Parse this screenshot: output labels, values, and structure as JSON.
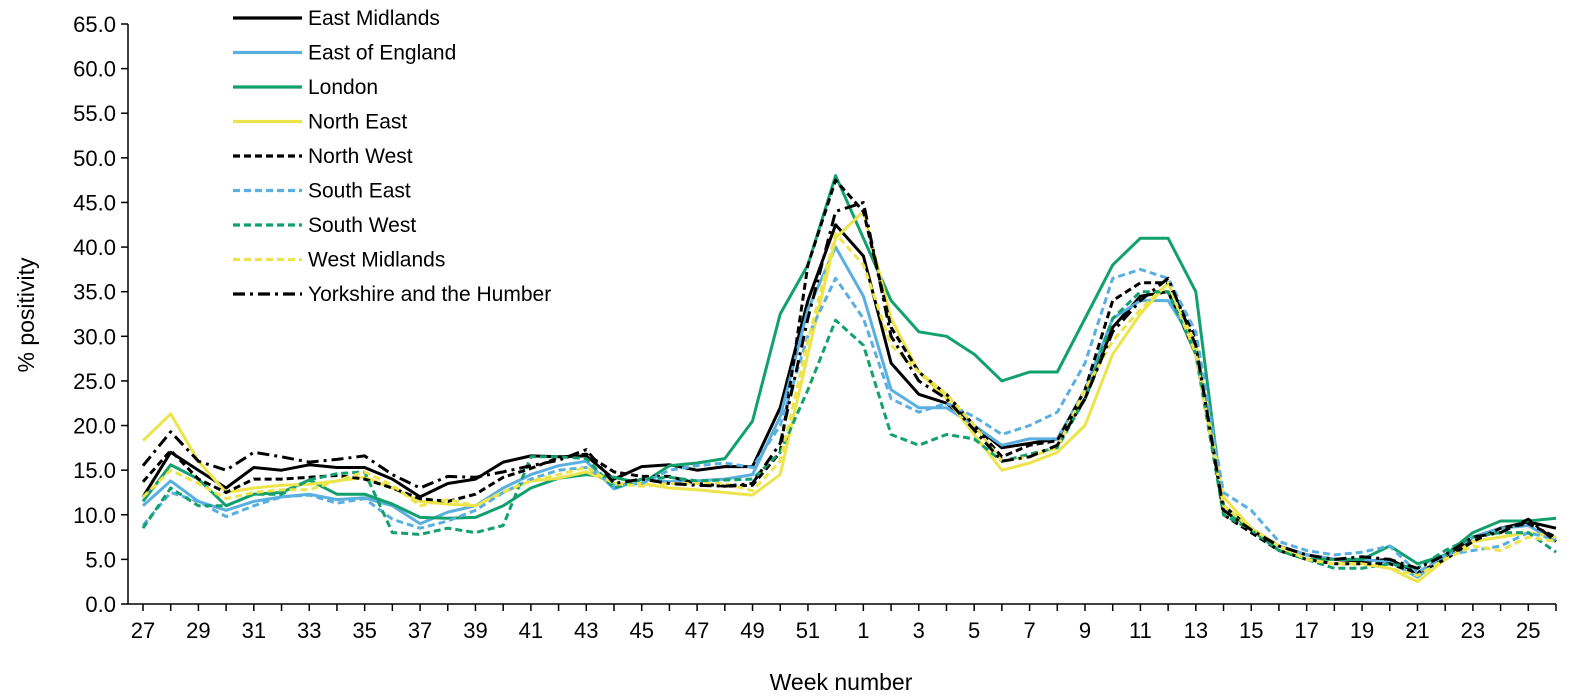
{
  "chart_data": {
    "type": "line",
    "title": "",
    "xlabel": "Week number",
    "ylabel": "% positivity",
    "ylim": [
      0,
      65
    ],
    "yticks": [
      "0.0",
      "5.0",
      "10.0",
      "15.0",
      "20.0",
      "25.0",
      "30.0",
      "35.0",
      "40.0",
      "45.0",
      "50.0",
      "55.0",
      "60.0",
      "65.0"
    ],
    "categories": [
      "27",
      "28",
      "29",
      "30",
      "31",
      "32",
      "33",
      "34",
      "35",
      "36",
      "37",
      "38",
      "39",
      "40",
      "41",
      "42",
      "43",
      "44",
      "45",
      "46",
      "47",
      "48",
      "49",
      "50",
      "51",
      "52",
      "1",
      "2",
      "3",
      "4",
      "5",
      "6",
      "7",
      "8",
      "9",
      "10",
      "11",
      "12",
      "13",
      "14",
      "15",
      "16",
      "17",
      "18",
      "19",
      "20",
      "21",
      "22",
      "23",
      "24",
      "25",
      "26"
    ],
    "xtick_labels": [
      "27",
      "29",
      "31",
      "33",
      "35",
      "37",
      "39",
      "41",
      "43",
      "45",
      "47",
      "49",
      "51",
      "1",
      "3",
      "5",
      "7",
      "9",
      "11",
      "13",
      "15",
      "17",
      "19",
      "21",
      "23",
      "25"
    ],
    "grid": false,
    "legend_position": "top-left",
    "series": [
      {
        "name": "East Midlands",
        "color": "#000000",
        "dash": "solid",
        "values": [
          12.0,
          17.0,
          15.0,
          13.0,
          15.3,
          15.0,
          15.6,
          15.3,
          15.3,
          14.0,
          12.0,
          13.5,
          14.0,
          15.9,
          16.6,
          16.5,
          16.6,
          14.0,
          15.4,
          15.6,
          15.0,
          15.4,
          15.4,
          22.0,
          34.0,
          42.5,
          39.0,
          27.0,
          23.5,
          22.5,
          20.0,
          17.5,
          18.0,
          18.5,
          23.0,
          31.0,
          34.5,
          35.0,
          28.0,
          11.0,
          8.5,
          6.5,
          5.5,
          5.0,
          4.8,
          5.0,
          3.5,
          5.0,
          7.5,
          8.5,
          9.2,
          8.5
        ]
      },
      {
        "name": "East of England",
        "color": "#5aafe1",
        "dash": "solid",
        "values": [
          11.0,
          13.8,
          11.5,
          10.5,
          11.5,
          12.0,
          12.3,
          11.7,
          11.9,
          11.0,
          9.0,
          10.3,
          11.0,
          13.0,
          14.5,
          15.5,
          16.0,
          12.9,
          14.0,
          13.7,
          13.8,
          14.0,
          14.5,
          21.0,
          33.0,
          40.0,
          34.5,
          24.0,
          22.0,
          22.0,
          20.0,
          17.8,
          18.5,
          18.5,
          24.0,
          32.0,
          34.0,
          34.0,
          29.0,
          10.5,
          8.5,
          6.5,
          5.5,
          5.0,
          5.0,
          4.7,
          3.0,
          5.5,
          7.5,
          8.5,
          8.8,
          7.0
        ]
      },
      {
        "name": "London",
        "color": "#12a06c",
        "dash": "solid",
        "values": [
          11.5,
          15.6,
          14.0,
          11.0,
          12.3,
          12.5,
          13.9,
          12.3,
          12.3,
          11.2,
          9.7,
          9.6,
          9.7,
          11.0,
          13.0,
          14.1,
          14.5,
          14.2,
          13.5,
          15.5,
          15.8,
          16.3,
          20.5,
          32.5,
          38.0,
          48.0,
          41.0,
          34.0,
          30.5,
          30.0,
          28.0,
          25.0,
          26.0,
          26.0,
          32.0,
          38.0,
          41.0,
          41.0,
          35.0,
          10.5,
          8.5,
          6.0,
          5.0,
          5.0,
          5.0,
          6.5,
          4.5,
          5.5,
          8.0,
          9.3,
          9.3,
          9.6
        ]
      },
      {
        "name": "North East",
        "color": "#ede44c",
        "dash": "solid",
        "values": [
          18.3,
          21.3,
          16.0,
          12.5,
          13.0,
          13.3,
          13.4,
          13.8,
          14.2,
          13.0,
          11.5,
          11.2,
          11.0,
          12.5,
          13.8,
          14.1,
          14.8,
          13.5,
          13.5,
          13.0,
          12.8,
          12.5,
          12.2,
          14.5,
          28.0,
          41.0,
          44.0,
          32.0,
          26.0,
          23.0,
          19.0,
          15.0,
          15.8,
          17.0,
          20.0,
          28.0,
          32.5,
          36.0,
          29.0,
          12.0,
          8.5,
          6.5,
          5.0,
          4.5,
          4.5,
          4.0,
          2.5,
          5.0,
          7.0,
          7.5,
          8.0,
          7.5
        ]
      },
      {
        "name": "North West",
        "color": "#000000",
        "dash": "dash",
        "values": [
          13.7,
          17.2,
          14.0,
          12.5,
          14.0,
          14.0,
          14.2,
          14.4,
          14.0,
          13.0,
          11.8,
          11.5,
          12.3,
          14.2,
          15.2,
          16.4,
          16.8,
          14.8,
          14.3,
          14.3,
          13.5,
          13.2,
          13.3,
          17.0,
          38.0,
          47.5,
          44.0,
          31.0,
          26.0,
          23.5,
          20.0,
          16.5,
          17.8,
          18.3,
          24.0,
          34.0,
          36.0,
          36.0,
          30.0,
          10.0,
          8.0,
          6.0,
          5.0,
          4.5,
          4.5,
          4.5,
          3.5,
          5.0,
          7.0,
          8.5,
          9.0,
          7.5
        ]
      },
      {
        "name": "South East",
        "color": "#5aafe1",
        "dash": "dash",
        "values": [
          8.8,
          12.5,
          11.5,
          9.8,
          11.0,
          12.0,
          12.2,
          11.3,
          11.8,
          9.5,
          8.5,
          9.3,
          10.5,
          12.5,
          14.0,
          15.0,
          15.3,
          13.3,
          13.5,
          15.0,
          15.5,
          15.8,
          15.3,
          20.0,
          30.0,
          36.5,
          32.0,
          23.0,
          21.5,
          22.5,
          21.0,
          19.0,
          20.0,
          21.5,
          27.0,
          36.5,
          37.5,
          36.5,
          30.5,
          12.5,
          10.5,
          7.0,
          6.0,
          5.5,
          5.8,
          6.5,
          3.5,
          5.5,
          6.0,
          6.5,
          8.0,
          7.2
        ]
      },
      {
        "name": "South West",
        "color": "#12a06c",
        "dash": "dash",
        "values": [
          8.5,
          13.0,
          11.0,
          11.0,
          12.3,
          12.3,
          13.9,
          14.6,
          14.8,
          8.0,
          7.8,
          8.5,
          8.0,
          8.8,
          16.5,
          16.5,
          16.3,
          13.0,
          14.0,
          14.2,
          13.8,
          13.9,
          14.0,
          17.0,
          24.0,
          31.8,
          29.0,
          19.0,
          17.8,
          19.0,
          18.5,
          16.0,
          16.8,
          17.5,
          23.0,
          32.0,
          35.0,
          35.0,
          28.0,
          10.0,
          8.3,
          6.0,
          5.0,
          4.0,
          4.0,
          4.5,
          4.0,
          6.0,
          7.5,
          8.0,
          8.0,
          5.8
        ]
      },
      {
        "name": "West Midlands",
        "color": "#ede44c",
        "dash": "dash",
        "values": [
          12.0,
          15.0,
          13.5,
          11.8,
          12.5,
          12.8,
          12.8,
          13.8,
          14.8,
          13.3,
          11.0,
          11.7,
          11.0,
          12.6,
          13.8,
          14.5,
          15.3,
          13.5,
          13.2,
          13.5,
          13.5,
          13.5,
          12.7,
          16.0,
          29.5,
          41.5,
          38.0,
          29.0,
          26.0,
          23.5,
          20.0,
          16.0,
          16.5,
          17.5,
          24.0,
          29.5,
          33.0,
          36.0,
          28.0,
          11.0,
          8.5,
          6.5,
          5.0,
          4.5,
          4.5,
          4.0,
          3.2,
          5.0,
          6.5,
          6.0,
          7.5,
          7.0
        ]
      },
      {
        "name": "Yorkshire and the Humber",
        "color": "#000000",
        "dash": "dashdot",
        "values": [
          15.5,
          19.3,
          16.0,
          15.0,
          17.0,
          16.5,
          15.9,
          16.2,
          16.6,
          14.5,
          13.0,
          14.3,
          14.2,
          14.8,
          15.5,
          16.1,
          17.3,
          13.5,
          14.0,
          13.5,
          13.3,
          13.2,
          13.5,
          18.0,
          32.0,
          44.0,
          45.0,
          30.0,
          25.0,
          23.0,
          19.5,
          16.0,
          16.5,
          17.8,
          23.0,
          30.5,
          34.0,
          36.5,
          29.0,
          10.5,
          8.3,
          6.5,
          5.5,
          5.0,
          5.3,
          5.0,
          4.0,
          5.5,
          7.5,
          8.0,
          9.5,
          7.0
        ]
      }
    ]
  }
}
